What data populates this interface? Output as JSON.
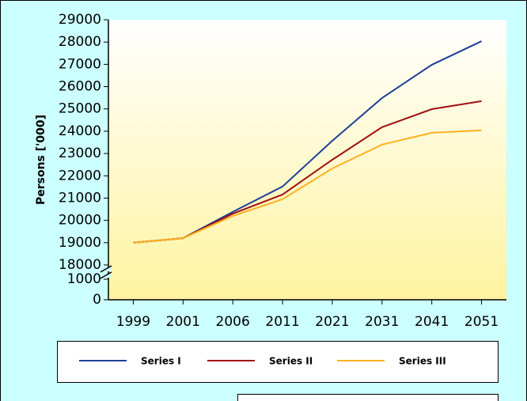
{
  "chart_data": {
    "type": "line",
    "y_label": "Persons ['000]",
    "categories": [
      "1999",
      "2001",
      "2006",
      "2011",
      "2021",
      "2031",
      "2041",
      "2051"
    ],
    "series": [
      {
        "name": "Series I",
        "color": "#1f3f99",
        "values": [
          19000,
          19200,
          20380,
          21520,
          23570,
          25490,
          26980,
          28040
        ]
      },
      {
        "name": "Series II",
        "color": "#a01010",
        "values": [
          19000,
          19200,
          20300,
          21160,
          22720,
          24180,
          24990,
          25350
        ]
      },
      {
        "name": "Series III",
        "color": "#ffb020",
        "values": [
          19000,
          19200,
          20200,
          20950,
          22330,
          23400,
          23930,
          24040
        ]
      }
    ],
    "ylim": [
      0,
      29000
    ],
    "yticks": [
      0,
      1000,
      18000,
      19000,
      20000,
      21000,
      22000,
      23000,
      24000,
      25000,
      26000,
      27000,
      28000,
      29000
    ],
    "y_break": [
      1000,
      18000
    ],
    "legend": "bottom"
  }
}
